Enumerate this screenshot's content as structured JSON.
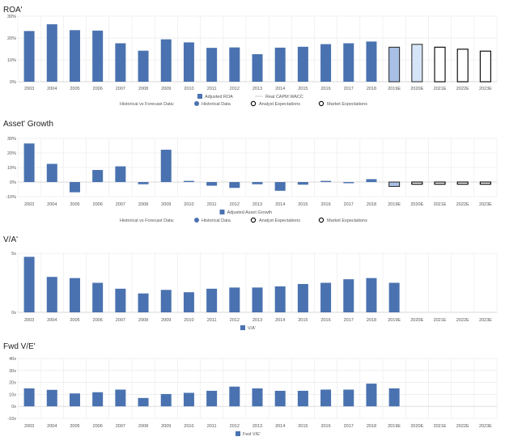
{
  "categories": [
    "2003",
    "2004",
    "2005",
    "2006",
    "2007",
    "2008",
    "2009",
    "2010",
    "2011",
    "2012",
    "2013",
    "2014",
    "2015",
    "2016",
    "2017",
    "2018",
    "2019E",
    "2020E",
    "2021E",
    "2022E",
    "2023E"
  ],
  "colors": {
    "historical": "#4a72b0",
    "historical_dark": "#3b5f96",
    "forecast_analyst": "#a9c0e6",
    "forecast_analyst2": "#d6e4f7",
    "grid": "#e6e6e6",
    "axis": "#cfcfcf",
    "legend_line": "#cfcfcf"
  },
  "forecast_legend": {
    "prefix": "Historical vs Forecast Data:",
    "historical": "Historical Data",
    "analyst": "Analyst Expectations",
    "market": "Market Expectations"
  },
  "chart_data": [
    {
      "id": "roa",
      "type": "bar",
      "title": "ROA'",
      "yticks": [
        "0%",
        "10%",
        "20%",
        "30%"
      ],
      "ylim": [
        0,
        30
      ],
      "values": [
        23.2,
        26.3,
        23.6,
        23.4,
        17.6,
        14.2,
        19.4,
        18.0,
        15.5,
        15.7,
        12.6,
        15.6,
        16.0,
        17.2,
        17.6,
        18.4,
        15.8,
        17.1,
        15.8,
        14.9,
        14.0
      ],
      "forecast_style": [
        "historical",
        "historical",
        "historical",
        "historical",
        "historical",
        "historical",
        "historical",
        "historical",
        "historical",
        "historical",
        "historical",
        "historical",
        "historical",
        "historical",
        "historical",
        "historical",
        "analyst",
        "analyst2",
        "market",
        "market",
        "market"
      ],
      "legend": [
        "Adjusted ROA",
        "Real CAPM WACC"
      ],
      "show_forecast_legend": true
    },
    {
      "id": "asset_growth",
      "type": "bar",
      "title": "Asset' Growth",
      "yticks": [
        "-10%",
        "0%",
        "10%",
        "20%",
        "30%"
      ],
      "ylim": [
        -10,
        30
      ],
      "values": [
        26.5,
        12.5,
        -7.0,
        8.3,
        10.8,
        -1.5,
        22.2,
        0.8,
        -2.5,
        -4.0,
        -1.5,
        -6.0,
        -1.8,
        0.8,
        -0.8,
        2.0,
        -3.0,
        -1.5,
        -1.5,
        -1.5,
        -1.5
      ],
      "forecast_style": [
        "historical",
        "historical",
        "historical",
        "historical",
        "historical",
        "historical",
        "historical",
        "historical",
        "historical",
        "historical",
        "historical",
        "historical",
        "historical",
        "historical",
        "historical",
        "historical",
        "analyst",
        "market",
        "market",
        "market",
        "market"
      ],
      "legend": [
        "Adjusted Asset Growth"
      ],
      "show_forecast_legend": true
    },
    {
      "id": "va",
      "type": "bar",
      "title": "V/A'",
      "yticks": [
        "0x",
        "5x"
      ],
      "ylim": [
        0,
        5
      ],
      "values": [
        4.7,
        3.0,
        2.9,
        2.5,
        2.0,
        1.6,
        1.9,
        1.7,
        2.0,
        2.1,
        2.1,
        2.2,
        2.4,
        2.5,
        2.8,
        2.9,
        2.5,
        null,
        null,
        null,
        null
      ],
      "forecast_style": [
        "historical",
        "historical",
        "historical",
        "historical",
        "historical",
        "historical",
        "historical",
        "historical",
        "historical",
        "historical",
        "historical",
        "historical",
        "historical",
        "historical",
        "historical",
        "historical",
        "historical",
        "none",
        "none",
        "none",
        "none"
      ],
      "legend": [
        "V/A'"
      ],
      "show_forecast_legend": false
    },
    {
      "id": "fwd_ve",
      "type": "bar",
      "title": "Fwd V/E'",
      "yticks": [
        "-10x",
        "0x",
        "10x",
        "20x",
        "30x",
        "40x"
      ],
      "ylim": [
        -10,
        40
      ],
      "values": [
        15.0,
        13.8,
        10.8,
        11.8,
        14.0,
        7.0,
        10.3,
        11.3,
        13.0,
        16.5,
        15.0,
        13.0,
        13.0,
        14.0,
        14.0,
        19.0,
        15.0,
        null,
        null,
        null,
        null
      ],
      "forecast_style": [
        "historical",
        "historical",
        "historical",
        "historical",
        "historical",
        "historical",
        "historical",
        "historical",
        "historical",
        "historical",
        "historical",
        "historical",
        "historical",
        "historical",
        "historical",
        "historical",
        "historical",
        "none",
        "none",
        "none",
        "none"
      ],
      "legend": [
        "Fwd V/E'"
      ],
      "show_forecast_legend": false
    }
  ]
}
